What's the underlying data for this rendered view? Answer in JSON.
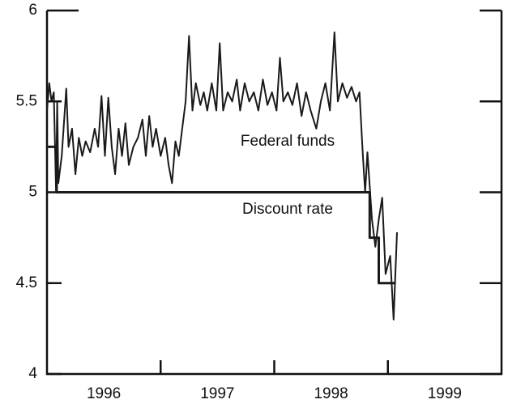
{
  "chart_data": {
    "type": "line",
    "annotations": [
      "Federal funds",
      "Discount rate"
    ],
    "xlim": [
      1996,
      2000
    ],
    "xticks": [
      {
        "value": 1996.5,
        "label": "1996"
      },
      {
        "value": 1997.5,
        "label": "1997"
      },
      {
        "value": 1998.5,
        "label": "1998"
      },
      {
        "value": 1999.5,
        "label": "1999"
      }
    ],
    "xtick_marks": [
      1997,
      1998,
      1999
    ],
    "ylim": [
      4,
      6
    ],
    "yticks": [
      4,
      4.5,
      5,
      5.5,
      6
    ],
    "series": [
      {
        "name": "Federal funds",
        "color": "#1a1a1a",
        "x": [
          1996.0,
          1996.02,
          1996.04,
          1996.06,
          1996.08,
          1996.09,
          1996.1,
          1996.13,
          1996.17,
          1996.19,
          1996.22,
          1996.25,
          1996.28,
          1996.31,
          1996.34,
          1996.38,
          1996.42,
          1996.45,
          1996.48,
          1996.51,
          1996.54,
          1996.57,
          1996.6,
          1996.63,
          1996.66,
          1996.69,
          1996.72,
          1996.76,
          1996.8,
          1996.84,
          1996.87,
          1996.9,
          1996.93,
          1996.96,
          1997.0,
          1997.04,
          1997.07,
          1997.1,
          1997.13,
          1997.16,
          1997.19,
          1997.22,
          1997.25,
          1997.28,
          1997.31,
          1997.35,
          1997.38,
          1997.41,
          1997.45,
          1997.49,
          1997.52,
          1997.55,
          1997.59,
          1997.63,
          1997.67,
          1997.7,
          1997.74,
          1997.78,
          1997.82,
          1997.86,
          1997.9,
          1997.94,
          1997.98,
          1998.02,
          1998.05,
          1998.08,
          1998.12,
          1998.16,
          1998.2,
          1998.24,
          1998.28,
          1998.32,
          1998.37,
          1998.41,
          1998.45,
          1998.49,
          1998.53,
          1998.56,
          1998.6,
          1998.64,
          1998.68,
          1998.72,
          1998.75,
          1998.78,
          1998.8,
          1998.82,
          1998.86,
          1998.89,
          1998.92,
          1998.95,
          1998.98,
          1999.02,
          1999.05,
          1999.08
        ],
        "values": [
          5.45,
          5.6,
          5.5,
          5.55,
          5.0,
          5.5,
          5.05,
          5.2,
          5.57,
          5.25,
          5.35,
          5.1,
          5.3,
          5.2,
          5.28,
          5.22,
          5.35,
          5.25,
          5.53,
          5.2,
          5.52,
          5.25,
          5.1,
          5.35,
          5.2,
          5.38,
          5.15,
          5.25,
          5.3,
          5.4,
          5.2,
          5.42,
          5.25,
          5.35,
          5.2,
          5.3,
          5.15,
          5.05,
          5.28,
          5.2,
          5.35,
          5.5,
          5.86,
          5.45,
          5.6,
          5.48,
          5.55,
          5.45,
          5.6,
          5.45,
          5.82,
          5.45,
          5.55,
          5.5,
          5.62,
          5.45,
          5.6,
          5.5,
          5.55,
          5.45,
          5.62,
          5.48,
          5.55,
          5.45,
          5.74,
          5.5,
          5.55,
          5.48,
          5.6,
          5.42,
          5.55,
          5.45,
          5.35,
          5.5,
          5.6,
          5.45,
          5.88,
          5.5,
          5.6,
          5.52,
          5.58,
          5.5,
          5.55,
          5.2,
          5.0,
          5.22,
          4.85,
          4.7,
          4.85,
          4.97,
          4.55,
          4.65,
          4.3,
          4.78
        ]
      },
      {
        "name": "Discount rate",
        "color": "#1a1a1a",
        "x": [
          1996.0,
          1996.085,
          1996.085,
          1998.84,
          1998.84,
          1998.92,
          1998.92,
          1999.07
        ],
        "values": [
          5.25,
          5.25,
          5.0,
          5.0,
          4.75,
          4.75,
          4.5,
          4.5
        ]
      }
    ]
  }
}
